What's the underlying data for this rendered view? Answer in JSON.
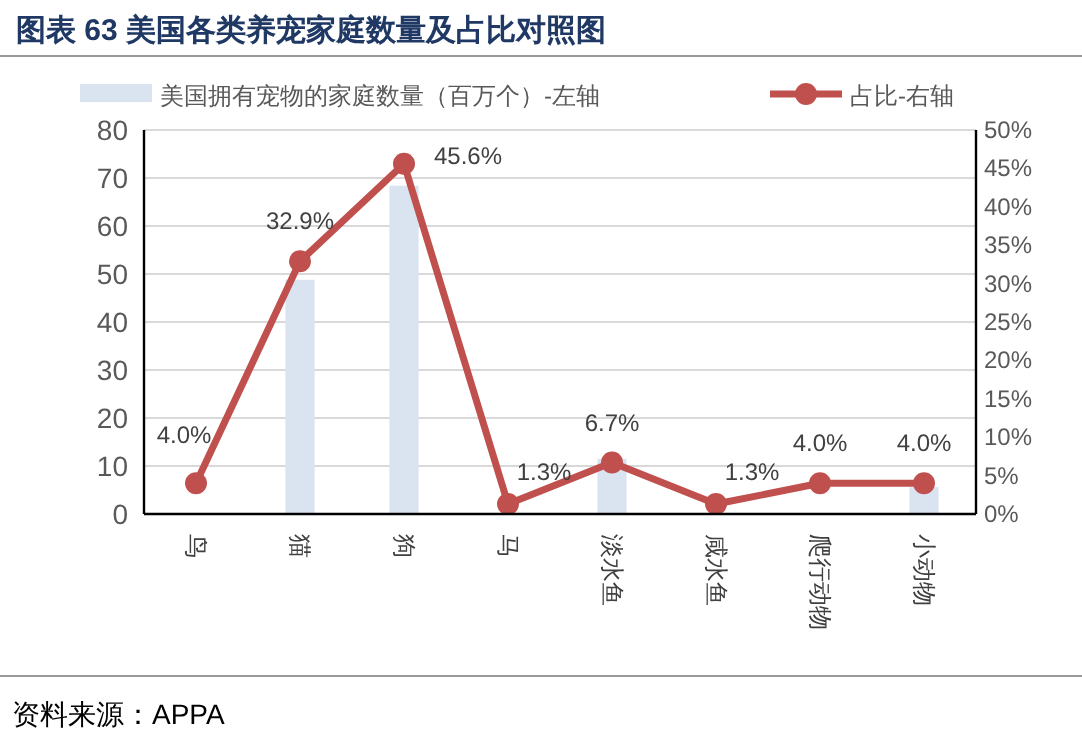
{
  "chart_data": {
    "type": "bar",
    "title": "图表 63  美国各类养宠家庭数量及占比对照图",
    "categories": [
      "鸟",
      "猫",
      "狗",
      "马",
      "淡水鱼",
      "咸水鱼",
      "爬行动物",
      "小动物"
    ],
    "series": [
      {
        "name": "美国拥有宠物的家庭数量（百万个）-左轴",
        "color": "#dae3f0",
        "values": [
          null,
          48.8,
          68.4,
          null,
          11.5,
          null,
          null,
          5.6
        ]
      },
      {
        "name": "占比-右轴",
        "type": "line",
        "axis": "y2",
        "marker": "circle",
        "color": "#c0504d",
        "values": [
          4.0,
          32.9,
          45.6,
          1.3,
          6.7,
          1.3,
          4.0,
          4.0
        ],
        "value_labels": [
          "4.0%",
          "32.9%",
          "45.6%",
          "1.3%",
          "6.7%",
          "1.3%",
          "4.0%",
          "4.0%"
        ]
      }
    ],
    "ylim": [
      0,
      80
    ],
    "yticks": [
      0,
      10,
      20,
      30,
      40,
      50,
      60,
      70,
      80
    ],
    "y2lim": [
      0,
      50
    ],
    "y2ticks": [
      {
        "value": 0,
        "label": "0%"
      },
      {
        "value": 5,
        "label": "5%"
      },
      {
        "value": 10,
        "label": "10%"
      },
      {
        "value": 15,
        "label": "15%"
      },
      {
        "value": 20,
        "label": "20%"
      },
      {
        "value": 25,
        "label": "25%"
      },
      {
        "value": 30,
        "label": "30%"
      },
      {
        "value": 35,
        "label": "35%"
      },
      {
        "value": 40,
        "label": "40%"
      },
      {
        "value": 45,
        "label": "45%"
      },
      {
        "value": 50,
        "label": "50%"
      }
    ],
    "grid": "y",
    "legend": "top",
    "annotations": [
      "资料来源：APPA"
    ]
  }
}
